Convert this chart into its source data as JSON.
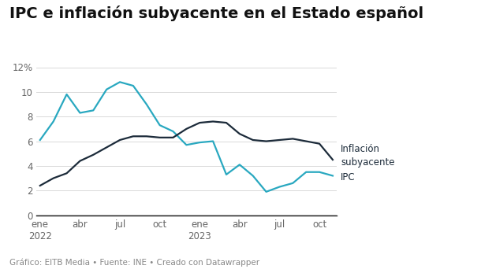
{
  "title": "IPC e inflación subyacente en el Estado español",
  "footnote": "Gráfico: EITB Media • Fuente: INE • Creado con Datawrapper",
  "ylim": [
    0,
    12
  ],
  "yticks": [
    0,
    2,
    4,
    6,
    8,
    10,
    12
  ],
  "background_color": "#ffffff",
  "ipc_color": "#29a8c0",
  "subyacente_color": "#1c2b3a",
  "tick_positions": [
    0,
    3,
    6,
    9,
    12,
    15,
    18,
    21
  ],
  "tick_labels": [
    "ene\n2022",
    "abr",
    "jul",
    "oct",
    "ene\n2023",
    "abr",
    "jul",
    "oct"
  ],
  "ipc_values": [
    6.1,
    7.6,
    9.8,
    8.3,
    8.5,
    10.2,
    10.8,
    10.5,
    9.0,
    7.3,
    6.8,
    5.7,
    5.9,
    6.0,
    3.3,
    4.1,
    3.2,
    1.9,
    2.3,
    2.6,
    3.5,
    3.5,
    3.2
  ],
  "subyacente_values": [
    2.4,
    3.0,
    3.4,
    4.4,
    4.9,
    5.5,
    6.1,
    6.4,
    6.4,
    6.3,
    6.3,
    7.0,
    7.5,
    7.6,
    7.5,
    6.6,
    6.1,
    6.0,
    6.1,
    6.2,
    6.0,
    5.8,
    4.5
  ],
  "legend_subyacente": "Inflación\nsubyacente",
  "legend_ipc": "IPC",
  "title_fontsize": 14,
  "tick_fontsize": 8.5,
  "footnote_fontsize": 7.5,
  "line_width": 1.6
}
